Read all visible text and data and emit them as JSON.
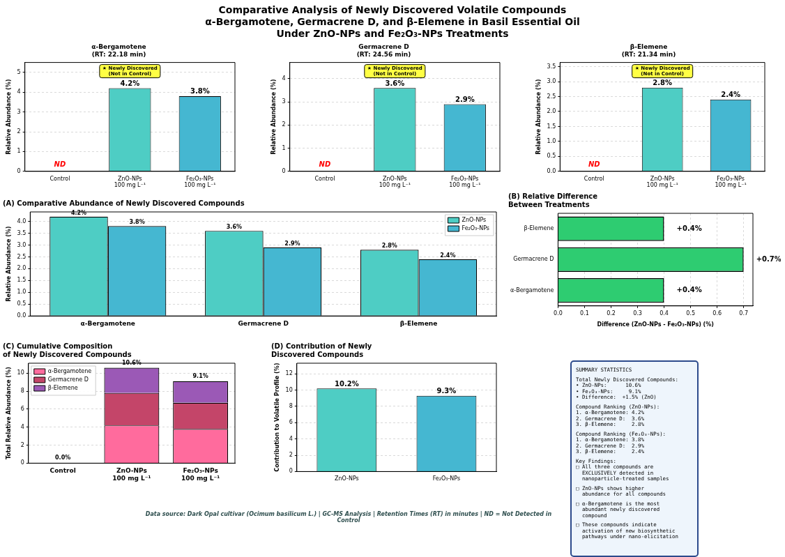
{
  "chart_data": [
    {
      "type": "other",
      "title": "Comparative Analysis of Newly Discovered Volatile Compounds\nα-Bergamotene, Germacrene D, and β-Elemene in Basil Essential Oil\nUnder ZnO-NPs and Fe₂O₃-NPs Treatments",
      "annotations": [
        "Data source: Dark Opal cultivar (Ocimum basilicum L.) | GC-MS Analysis | Retention Times (RT) in minutes | ND = Not Detected in Control"
      ]
    },
    {
      "type": "bar",
      "title": "α-Bergamotene",
      "subtitle": "(RT: 22.18 min)",
      "ylabel": "Relative Abundance (%)",
      "categories": [
        "Control",
        "ZnO-NPs\n100 mg L⁻¹",
        "Fe₂O₃-NPs\n100 mg L⁻¹"
      ],
      "values": [
        0,
        4.2,
        3.8
      ],
      "colors": [
        "#d3d3d3",
        "#4ecdc4",
        "#45b7d1"
      ],
      "value_labels": [
        "ND",
        "4.2%",
        "3.8%"
      ],
      "ylim": [
        0,
        5.5
      ],
      "yticks": [
        0,
        1,
        2,
        3,
        4,
        5
      ],
      "grid": "y",
      "annotations": [
        "★ Newly Discovered\n(Not in Control)"
      ]
    },
    {
      "type": "bar",
      "title": "Germacrene D",
      "subtitle": "(RT: 24.56 min)",
      "ylabel": "Relative Abundance (%)",
      "categories": [
        "Control",
        "ZnO-NPs\n100 mg L⁻¹",
        "Fe₂O₃-NPs\n100 mg L⁻¹"
      ],
      "values": [
        0,
        3.6,
        2.9
      ],
      "colors": [
        "#d3d3d3",
        "#4ecdc4",
        "#45b7d1"
      ],
      "value_labels": [
        "ND",
        "3.6%",
        "2.9%"
      ],
      "ylim": [
        0,
        4.7
      ],
      "yticks": [
        0,
        1,
        2,
        3,
        4
      ],
      "grid": "y",
      "annotations": [
        "★ Newly Discovered\n(Not in Control)"
      ]
    },
    {
      "type": "bar",
      "title": "β-Elemene",
      "subtitle": "(RT: 21.34 min)",
      "ylabel": "Relative Abundance (%)",
      "categories": [
        "Control",
        "ZnO-NPs\n100 mg L⁻¹",
        "Fe₂O₃-NPs\n100 mg L⁻¹"
      ],
      "values": [
        0,
        2.8,
        2.4
      ],
      "colors": [
        "#d3d3d3",
        "#4ecdc4",
        "#45b7d1"
      ],
      "value_labels": [
        "ND",
        "2.8%",
        "2.4%"
      ],
      "ylim": [
        0,
        3.64
      ],
      "yticks": [
        {
          "value": 0,
          "label": "0.0"
        },
        {
          "value": 0.5,
          "label": "0.5"
        },
        {
          "value": 1,
          "label": "1.0"
        },
        {
          "value": 1.5,
          "label": "1.5"
        },
        {
          "value": 2,
          "label": "2.0"
        },
        {
          "value": 2.5,
          "label": "2.5"
        },
        {
          "value": 3,
          "label": "3.0"
        },
        {
          "value": 3.5,
          "label": "3.5"
        }
      ],
      "grid": "y",
      "annotations": [
        "★ Newly Discovered\n(Not in Control)"
      ]
    },
    {
      "type": "bar",
      "title": "(A) Comparative Abundance of Newly Discovered Compounds",
      "ylabel": "Relative Abundance (%)",
      "categories": [
        "α-Bergamotene",
        "Germacrene D",
        "β-Elemene"
      ],
      "series": [
        {
          "name": "ZnO-NPs",
          "color": "#4ecdc4",
          "values": [
            4.2,
            3.6,
            2.8
          ],
          "value_labels": [
            "4.2%",
            "3.6%",
            "2.8%"
          ]
        },
        {
          "name": "Fe₂O₃-NPs",
          "color": "#45b7d1",
          "values": [
            3.8,
            2.9,
            2.4
          ],
          "value_labels": [
            "3.8%",
            "2.9%",
            "2.4%"
          ]
        }
      ],
      "ylim": [
        0,
        4.4
      ],
      "yticks": [
        {
          "value": 0,
          "label": "0.0"
        },
        {
          "value": 0.5,
          "label": "0.5"
        },
        {
          "value": 1,
          "label": "1.0"
        },
        {
          "value": 1.5,
          "label": "1.5"
        },
        {
          "value": 2,
          "label": "2.0"
        },
        {
          "value": 2.5,
          "label": "2.5"
        },
        {
          "value": 3,
          "label": "3.0"
        },
        {
          "value": 3.5,
          "label": "3.5"
        },
        {
          "value": 4,
          "label": "4.0"
        }
      ],
      "grid": "y",
      "legend": "top right"
    },
    {
      "type": "bar",
      "orientation": "horizontal",
      "title": "(B) Relative Difference\nBetween Treatments",
      "xlabel": "Difference (ZnO-NPs - Fe₂O₃-NPs) (%)",
      "categories": [
        "β-Elemene",
        "Germacrene D",
        "α-Bergamotene"
      ],
      "values": [
        0.4,
        0.7,
        0.4
      ],
      "color": "#2ecc71",
      "value_labels": [
        "+0.4%",
        "+0.7%",
        "+0.4%"
      ],
      "xlim": [
        0,
        0.735
      ],
      "xticks": [
        {
          "value": 0,
          "label": "0.0"
        },
        0.1,
        0.2,
        0.3,
        0.4,
        0.5,
        0.6,
        0.7
      ],
      "grid": "x"
    },
    {
      "type": "bar",
      "stacked": true,
      "title": "(C) Cumulative Composition\nof Newly Discovered Compounds",
      "ylabel": "Total Relative Abundance (%)",
      "categories": [
        "Control",
        "ZnO-NPs\n100 mg L⁻¹",
        "Fe₂O₃-NPs\n100 mg L⁻¹"
      ],
      "series": [
        {
          "name": "α-Bergamotene",
          "color": "#ff6b9d",
          "values": [
            0,
            4.2,
            3.8
          ]
        },
        {
          "name": "Germacrene D",
          "color": "#c44569",
          "values": [
            0,
            3.6,
            2.9
          ]
        },
        {
          "name": "β-Elemene",
          "color": "#9b59b6",
          "values": [
            0,
            2.8,
            2.4
          ]
        }
      ],
      "totals": [
        "0.0%",
        "10.6%",
        "9.1%"
      ],
      "ylim": [
        0,
        11.1
      ],
      "yticks": [
        0,
        2,
        4,
        6,
        8,
        10
      ],
      "grid": "y",
      "legend": "top left"
    },
    {
      "type": "bar",
      "title": "(D) Contribution of Newly\nDiscovered Compounds",
      "ylabel": "Contribution to Volatile Profile (%)",
      "categories": [
        "ZnO-NPs",
        "Fe₂O₃-NPs"
      ],
      "values": [
        10.2,
        9.3
      ],
      "colors": [
        "#4ecdc4",
        "#45b7d1"
      ],
      "value_labels": [
        "10.2%",
        "9.3%"
      ],
      "ylim": [
        0,
        13.3
      ],
      "yticks": [
        0,
        2,
        4,
        6,
        8,
        10,
        12
      ],
      "grid": "y"
    },
    {
      "type": "other",
      "title": "SUMMARY STATISTICS",
      "annotations": [
        "Total Newly Discovered Compounds:\n• ZnO-NPs:      10.6%\n• Fe₂O₃-NPs:     9.1%\n• Difference:  +1.5% (ZnO)",
        "Compound Ranking (ZnO-NPs):\n1. α-Bergamotene: 4.2%\n2. Germacrene D:  3.6%\n3. β-Elemene:     2.8%",
        "Compound Ranking (Fe₂O₃-NPs):\n1. α-Bergamotene: 3.8%\n2. Germacrene D:  2.9%\n3. β-Elemene:     2.4%",
        "Key Findings:\n□ All three compounds are\n  EXCLUSIVELY detected in\n  nanoparticle-treated samples",
        "□ ZnO-NPs shows higher\n  abundance for all compounds",
        "□ α-Bergamotene is the most\n  abundant newly discovered\n  compound",
        "□ These compounds indicate\n  activation of new biosynthetic\n  pathways under nano-elicitation"
      ]
    }
  ]
}
